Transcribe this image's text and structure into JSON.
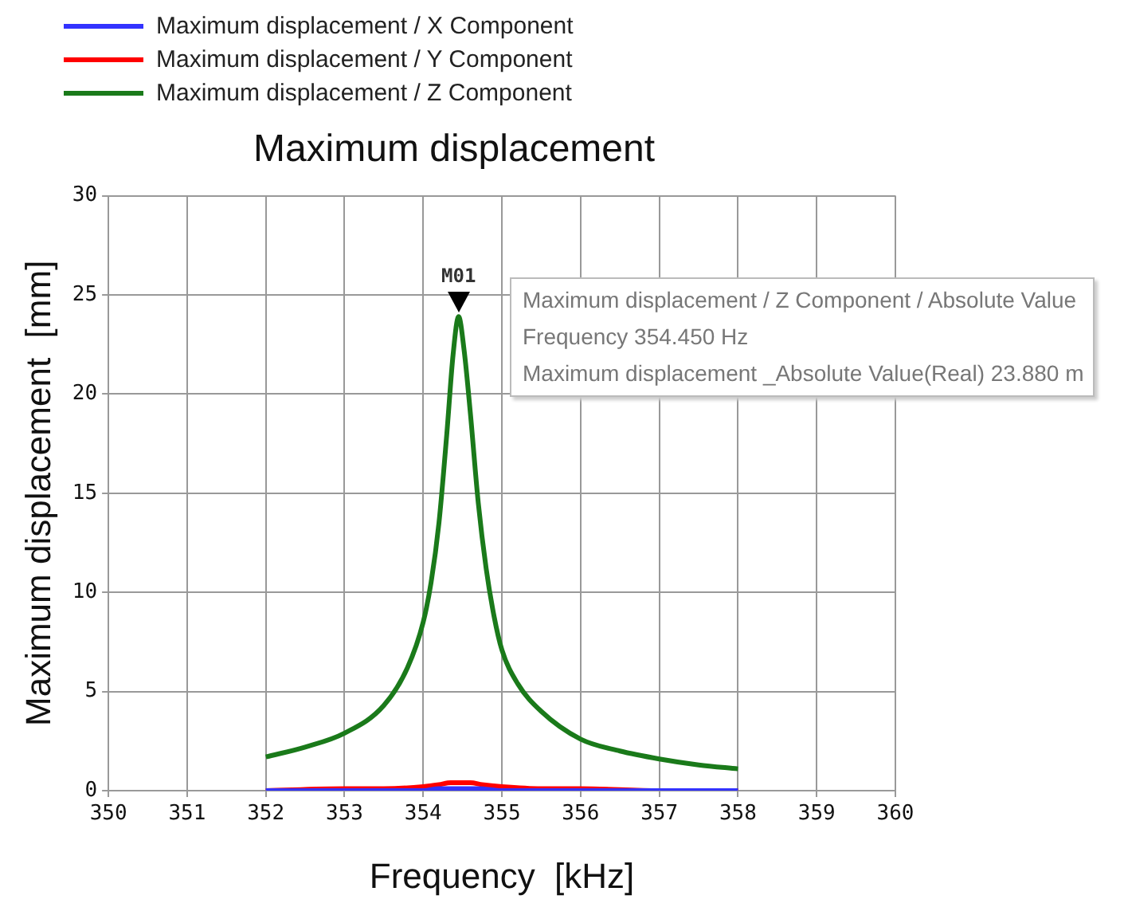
{
  "chart_data": {
    "type": "line",
    "title": "Maximum displacement",
    "xlabel": "Frequency  [kHz]",
    "ylabel": "Maximum displacement  [mm]",
    "xlim": [
      350,
      360
    ],
    "xticks": [
      350,
      351,
      352,
      353,
      354,
      355,
      356,
      357,
      358,
      359,
      360
    ],
    "ylim": [
      0,
      30
    ],
    "yticks": [
      0,
      5,
      10,
      15,
      20,
      25,
      30
    ],
    "grid": true,
    "legend": "top left",
    "marker": "none",
    "series": [
      {
        "name": "Maximum displacement / X Component",
        "color": "#3333ff",
        "x": [
          352,
          353,
          353.5,
          354,
          354.2,
          354.45,
          354.7,
          355,
          355.5,
          356,
          357,
          358
        ],
        "values": [
          0,
          0,
          0,
          0,
          0.1,
          0.1,
          0.1,
          0,
          0,
          0,
          0,
          0
        ]
      },
      {
        "name": "Maximum displacement / Y Component",
        "color": "#ff0000",
        "x": [
          352,
          353,
          353.5,
          354,
          354.2,
          354.35,
          354.45,
          354.6,
          354.75,
          355,
          355.5,
          356,
          357,
          358
        ],
        "values": [
          0,
          0.1,
          0.1,
          0.2,
          0.3,
          0.4,
          0.4,
          0.4,
          0.3,
          0.2,
          0.1,
          0.1,
          0,
          0
        ]
      },
      {
        "name": "Maximum displacement / Z Component",
        "color": "#1a7a1a",
        "x": [
          352,
          352.5,
          353,
          353.5,
          353.8,
          354,
          354.1,
          354.2,
          354.3,
          354.38,
          354.45,
          354.52,
          354.6,
          354.7,
          354.8,
          354.9,
          355,
          355.2,
          355.5,
          356,
          356.5,
          357,
          357.5,
          358
        ],
        "values": [
          1.7,
          2.2,
          2.9,
          4.3,
          6.2,
          8.5,
          10.5,
          13.5,
          18,
          22,
          23.9,
          22.2,
          19,
          14.5,
          11.2,
          8.8,
          7.1,
          5.4,
          4.0,
          2.6,
          2.0,
          1.6,
          1.3,
          1.1
        ]
      }
    ],
    "annotations": [
      {
        "text": "M01",
        "x": 354.45,
        "y": 23.9
      },
      "Maximum displacement / Z Component / Absolute Value",
      "Frequency  354.450 Hz",
      "Maximum displacement _Absolute Value(Real) 23.880 m"
    ]
  }
}
